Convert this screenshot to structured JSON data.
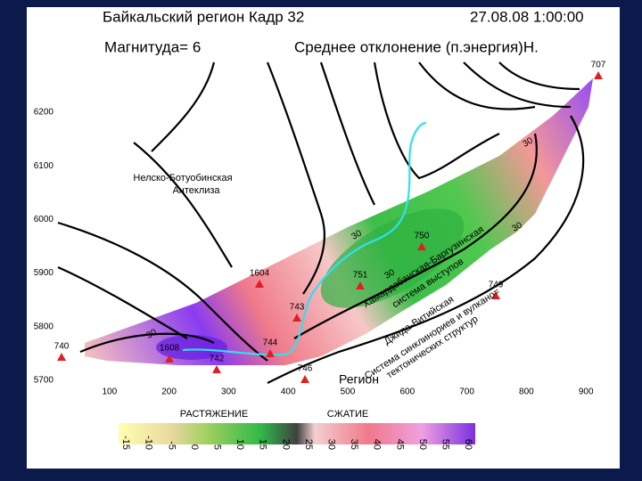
{
  "header": {
    "title": "Байкальский регион Кадр 32",
    "datetime": "27.08.08 1:00:00",
    "magnitude": "Магнитуда= 6",
    "measure": "Среднее отклонение (п.энергия)Н."
  },
  "map": {
    "x_ticks": [
      100,
      200,
      300,
      400,
      500,
      600,
      700,
      800,
      900
    ],
    "y_ticks": [
      6200,
      6100,
      6000,
      5900,
      5800,
      5700
    ],
    "stations": [
      "707",
      "740",
      "742",
      "743",
      "744",
      "746",
      "749",
      "750",
      "751",
      "1604",
      "1608"
    ],
    "regions": [
      "Нелско-Ботуобинская",
      "Антеклиза",
      "Хамардабанская-Баргузинская",
      "система выступов",
      "Джида-Витийская",
      "Система синклинориев и вулкано=",
      "тектонических структур"
    ],
    "contour_labels": [
      "30",
      "30",
      "30",
      "30",
      "30"
    ],
    "footer_text": "Регион"
  },
  "colorbar": {
    "left_label": "РАСТЯЖЕНИЕ",
    "right_label": "СЖАТИЕ",
    "ticks": [
      -15,
      -10,
      -5,
      0,
      5,
      10,
      15,
      20,
      25,
      30,
      35,
      40,
      45,
      50,
      55,
      60
    ]
  }
}
